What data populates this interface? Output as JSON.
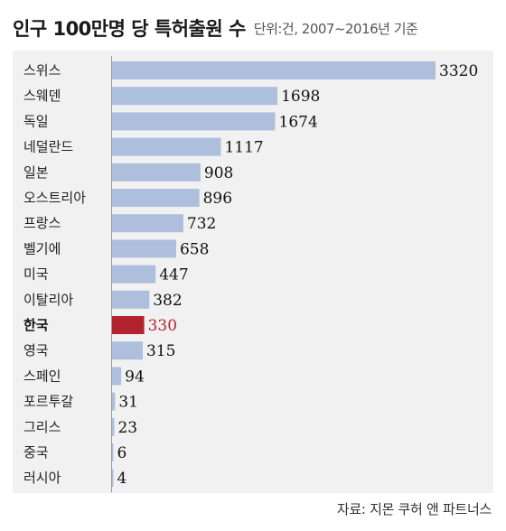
{
  "header": {
    "title": "인구 100만명 당 특허출원 수",
    "unit_note": "단위:건, 2007~2016년 기준"
  },
  "footer": {
    "source": "자료: 지몬 쿠허 앤 파트너스"
  },
  "colors": {
    "bar": "#adbfdc",
    "highlight": "#b3232f",
    "panel": "#f1f1f2",
    "axis": "#9a9a9a"
  },
  "chart_data": {
    "type": "bar",
    "orientation": "horizontal",
    "categories": [
      "스위스",
      "스웨덴",
      "독일",
      "네덜란드",
      "일본",
      "오스트리아",
      "프랑스",
      "벨기에",
      "미국",
      "이탈리아",
      "한국",
      "영국",
      "스페인",
      "포르투갈",
      "그리스",
      "중국",
      "러시아"
    ],
    "values": [
      3320,
      1698,
      1674,
      1117,
      908,
      896,
      732,
      658,
      447,
      382,
      330,
      315,
      94,
      31,
      23,
      6,
      4
    ],
    "value_labels": [
      "3320",
      "1698",
      "1674",
      "1117",
      "908",
      "896",
      "732",
      "658",
      "447",
      "382",
      "330",
      "315",
      "94",
      "31",
      "23",
      "6",
      "4"
    ],
    "highlight": "한국",
    "xlim": [
      0,
      3320
    ]
  }
}
